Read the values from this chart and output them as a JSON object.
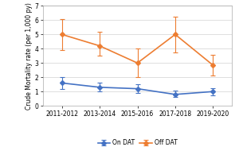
{
  "x_labels": [
    "2011-2012",
    "2013-2014",
    "2015-2016",
    "2017-2018",
    "2019-2020"
  ],
  "x_positions": [
    0,
    1,
    2,
    3,
    4
  ],
  "on_dat_values": [
    1.6,
    1.3,
    1.2,
    0.8,
    1.0
  ],
  "on_dat_lower_err": [
    0.4,
    0.3,
    0.3,
    0.2,
    0.25
  ],
  "on_dat_upper_err": [
    0.4,
    0.3,
    0.3,
    0.25,
    0.25
  ],
  "off_dat_values": [
    5.0,
    4.2,
    3.0,
    5.0,
    2.85
  ],
  "off_dat_lower_err": [
    1.1,
    0.7,
    1.0,
    1.25,
    0.75
  ],
  "off_dat_upper_err": [
    1.1,
    1.0,
    1.0,
    1.25,
    0.75
  ],
  "on_dat_color": "#4472C4",
  "off_dat_color": "#ED7D31",
  "on_dat_label": "On DAT",
  "off_dat_label": "Off DAT",
  "ylabel": "Crude Mortality rate (per 1,000 py)",
  "ylim": [
    0,
    7
  ],
  "yticks": [
    0,
    1,
    2,
    3,
    4,
    5,
    6,
    7
  ],
  "background_color": "#ffffff",
  "plot_bg_color": "#ffffff",
  "grid_color": "#d9d9d9",
  "marker": "D",
  "marker_size": 3,
  "line_width": 1.2,
  "tick_font_size": 5.5,
  "legend_font_size": 5.5,
  "ylabel_font_size": 5.5,
  "elinewidth": 0.8,
  "capsize": 2,
  "capthick": 0.8
}
